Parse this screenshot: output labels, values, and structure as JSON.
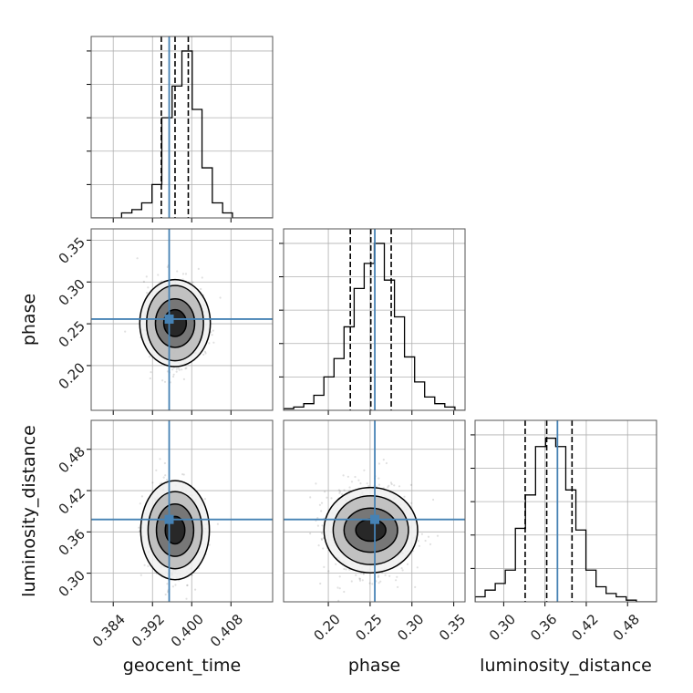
{
  "chart_data": {
    "type": "corner",
    "parameters": [
      "geocent_time",
      "phase",
      "luminosity_distance"
    ],
    "xlabels": [
      "geocent_time",
      "phase",
      "luminosity_distance"
    ],
    "ylabels": [
      "",
      "phase",
      "luminosity_distance"
    ],
    "ranges": [
      [
        0.3795,
        0.4165
      ],
      [
        0.1465,
        0.3635
      ],
      [
        0.2584,
        0.5221
      ]
    ],
    "ticks": [
      {
        "values": [
          0.384,
          0.392,
          0.4,
          0.408
        ],
        "labels": [
          "0.384",
          "0.392",
          "0.400",
          "0.408"
        ]
      },
      {
        "values": [
          0.2,
          0.25,
          0.3,
          0.35
        ],
        "labels": [
          "0.20",
          "0.25",
          "0.30",
          "0.35"
        ]
      },
      {
        "values": [
          0.3,
          0.36,
          0.42,
          0.48
        ],
        "labels": [
          "0.30",
          "0.36",
          "0.42",
          "0.48"
        ]
      }
    ],
    "truths": [
      0.3954,
      0.2556,
      0.3781
    ],
    "quantiles": [
      [
        0.3938,
        0.3966,
        0.3993
      ],
      [
        0.2263,
        0.2508,
        0.2752
      ],
      [
        0.3312,
        0.3625,
        0.3993
      ]
    ],
    "histograms": [
      {
        "bin_edges": [
          0.3795,
          0.3816,
          0.3837,
          0.3857,
          0.3878,
          0.3898,
          0.3919,
          0.3939,
          0.396,
          0.398,
          0.4001,
          0.4021,
          0.4042,
          0.4063,
          0.4083,
          0.4104,
          0.4124,
          0.4145,
          0.4165
        ],
        "counts": [
          0.0,
          0.0,
          0.0,
          0.03,
          0.05,
          0.09,
          0.2,
          0.6,
          0.79,
          1.0,
          0.65,
          0.3,
          0.09,
          0.03,
          0.0,
          0.0,
          0.0,
          0.0
        ]
      },
      {
        "bin_edges": [
          0.1465,
          0.1586,
          0.1706,
          0.1827,
          0.1947,
          0.2068,
          0.2188,
          0.2309,
          0.2429,
          0.255,
          0.267,
          0.2791,
          0.2911,
          0.3032,
          0.3152,
          0.3273,
          0.3393,
          0.3514,
          0.3635
        ],
        "counts": [
          0.01,
          0.02,
          0.04,
          0.09,
          0.2,
          0.31,
          0.5,
          0.73,
          0.88,
          1.0,
          0.78,
          0.56,
          0.32,
          0.17,
          0.08,
          0.04,
          0.02,
          0.0
        ]
      },
      {
        "bin_edges": [
          0.2584,
          0.273,
          0.2877,
          0.3023,
          0.317,
          0.3316,
          0.3463,
          0.3609,
          0.3756,
          0.3902,
          0.4049,
          0.4195,
          0.4342,
          0.4488,
          0.4635,
          0.4781,
          0.4928,
          0.5074,
          0.5221
        ],
        "counts": [
          0.03,
          0.07,
          0.11,
          0.19,
          0.44,
          0.64,
          0.93,
          0.98,
          0.93,
          0.67,
          0.43,
          0.19,
          0.09,
          0.05,
          0.03,
          0.01,
          0.0,
          0.0
        ]
      }
    ],
    "pairs": [
      {
        "x": 0,
        "y": 1,
        "center": [
          0.3966,
          0.2508
        ],
        "spread": [
          0.0026,
          0.0245
        ],
        "contour_half_widths": [
          [
            0.0023,
            0.016
          ],
          [
            0.004,
            0.029
          ],
          [
            0.0058,
            0.045
          ],
          [
            0.0072,
            0.052
          ]
        ]
      },
      {
        "x": 0,
        "y": 2,
        "center": [
          0.3966,
          0.3625
        ],
        "spread": [
          0.0026,
          0.033
        ],
        "contour_half_widths": [
          [
            0.002,
            0.02
          ],
          [
            0.0038,
            0.038
          ],
          [
            0.0055,
            0.056
          ],
          [
            0.007,
            0.072
          ]
        ]
      },
      {
        "x": 1,
        "y": 2,
        "center": [
          0.2508,
          0.3625
        ],
        "spread": [
          0.0245,
          0.033
        ],
        "contour_half_widths": [
          [
            0.018,
            0.016
          ],
          [
            0.032,
            0.032
          ],
          [
            0.045,
            0.05
          ],
          [
            0.056,
            0.062
          ]
        ]
      }
    ],
    "colors": {
      "truth": "#4682b4",
      "hist": "#000000",
      "grid": "#b0b0b0",
      "points": "#000000"
    },
    "grid": true
  }
}
